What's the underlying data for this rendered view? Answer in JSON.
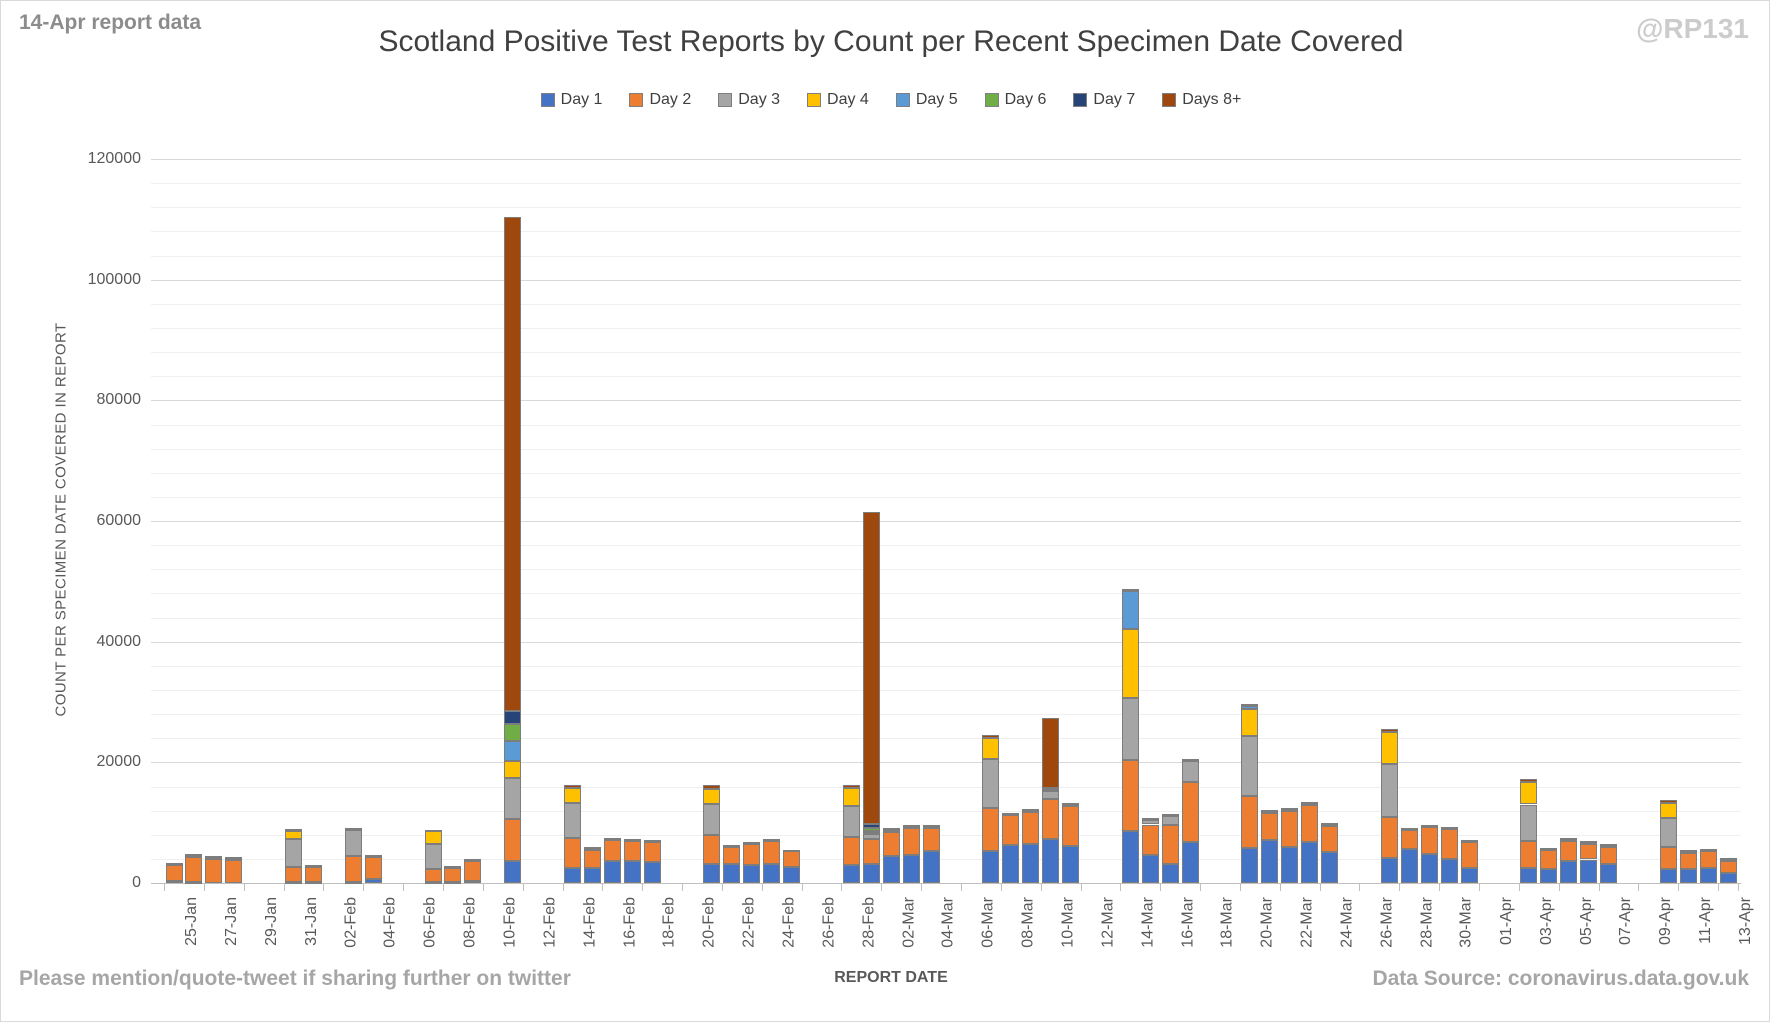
{
  "header": {
    "note": "14-Apr report data",
    "watermark": "@RP131"
  },
  "footer": {
    "left": "Please mention/quote-tweet if sharing further on twitter",
    "right": "Data Source: coronavirus.data.gov.uk"
  },
  "chart_data": {
    "type": "bar",
    "stacked": true,
    "title": "Scotland Positive Test Reports by Count per Recent Specimen Date Covered",
    "xlabel": "REPORT DATE",
    "ylabel": "COUNT PER SPECIMEN DATE COVERED IN REPORT",
    "ylim": [
      0,
      120000
    ],
    "y_major_step": 20000,
    "y_minor_step": 4000,
    "grid": true,
    "legend_position": "top",
    "x_span_days": 79,
    "x_tick_labels": [
      "25-Jan",
      "27-Jan",
      "29-Jan",
      "31-Jan",
      "02-Feb",
      "04-Feb",
      "06-Feb",
      "08-Feb",
      "10-Feb",
      "12-Feb",
      "14-Feb",
      "16-Feb",
      "18-Feb",
      "20-Feb",
      "22-Feb",
      "24-Feb",
      "26-Feb",
      "28-Feb",
      "02-Mar",
      "04-Mar",
      "06-Mar",
      "08-Mar",
      "10-Mar",
      "12-Mar",
      "14-Mar",
      "16-Mar",
      "18-Mar",
      "20-Mar",
      "22-Mar",
      "24-Mar",
      "26-Mar",
      "28-Mar",
      "30-Mar",
      "01-Apr",
      "03-Apr",
      "05-Apr",
      "07-Apr",
      "09-Apr",
      "11-Apr",
      "13-Apr"
    ],
    "series": [
      {
        "name": "Day 1",
        "color": "#4472C4"
      },
      {
        "name": "Day 2",
        "color": "#ED7D31"
      },
      {
        "name": "Day 3",
        "color": "#A5A5A5"
      },
      {
        "name": "Day 4",
        "color": "#FFC000"
      },
      {
        "name": "Day 5",
        "color": "#5B9BD5"
      },
      {
        "name": "Day 6",
        "color": "#70AD47"
      },
      {
        "name": "Day 7",
        "color": "#264478"
      },
      {
        "name": "Days 8+",
        "color": "#9E480E"
      }
    ],
    "bars": [
      {
        "date": "25-Jan",
        "day": 0,
        "values": [
          400,
          2600,
          100,
          0,
          0,
          0,
          0,
          300
        ]
      },
      {
        "date": "26-Jan",
        "day": 1,
        "values": [
          200,
          4100,
          200,
          0,
          0,
          0,
          0,
          300
        ]
      },
      {
        "date": "27-Jan",
        "day": 2,
        "values": [
          0,
          4100,
          100,
          0,
          0,
          0,
          0,
          300
        ]
      },
      {
        "date": "28-Jan",
        "day": 3,
        "values": [
          0,
          3900,
          100,
          0,
          0,
          0,
          0,
          300
        ]
      },
      {
        "date": "31-Jan",
        "day": 6,
        "values": [
          200,
          2400,
          4700,
          1400,
          0,
          0,
          0,
          200
        ]
      },
      {
        "date": "01-Feb",
        "day": 7,
        "values": [
          100,
          2600,
          100,
          0,
          0,
          0,
          0,
          200
        ]
      },
      {
        "date": "03-Feb",
        "day": 9,
        "values": [
          200,
          4300,
          4300,
          100,
          0,
          0,
          0,
          200
        ]
      },
      {
        "date": "04-Feb",
        "day": 10,
        "values": [
          700,
          3700,
          100,
          0,
          0,
          0,
          0,
          200
        ]
      },
      {
        "date": "07-Feb",
        "day": 13,
        "values": [
          100,
          2200,
          4100,
          2200,
          0,
          0,
          0,
          200
        ]
      },
      {
        "date": "08-Feb",
        "day": 14,
        "values": [
          100,
          2400,
          100,
          0,
          0,
          0,
          0,
          200
        ]
      },
      {
        "date": "09-Feb",
        "day": 15,
        "values": [
          300,
          3400,
          100,
          0,
          0,
          0,
          0,
          200
        ]
      },
      {
        "date": "11-Feb",
        "day": 17,
        "values": [
          3600,
          7000,
          6800,
          2800,
          3300,
          2800,
          2200,
          81900
        ]
      },
      {
        "date": "14-Feb",
        "day": 20,
        "values": [
          2500,
          5000,
          5800,
          2500,
          0,
          0,
          0,
          500
        ]
      },
      {
        "date": "15-Feb",
        "day": 21,
        "values": [
          2500,
          3100,
          100,
          0,
          0,
          0,
          0,
          200
        ]
      },
      {
        "date": "16-Feb",
        "day": 22,
        "values": [
          3600,
          3600,
          100,
          0,
          0,
          0,
          0,
          200
        ]
      },
      {
        "date": "17-Feb",
        "day": 23,
        "values": [
          3600,
          3400,
          100,
          0,
          0,
          0,
          0,
          200
        ]
      },
      {
        "date": "18-Feb",
        "day": 24,
        "values": [
          3500,
          3400,
          100,
          0,
          0,
          0,
          0,
          200
        ]
      },
      {
        "date": "21-Feb",
        "day": 27,
        "values": [
          3100,
          4900,
          5100,
          2500,
          0,
          0,
          0,
          600
        ]
      },
      {
        "date": "22-Feb",
        "day": 28,
        "values": [
          3200,
          2900,
          100,
          0,
          0,
          0,
          0,
          100
        ]
      },
      {
        "date": "23-Feb",
        "day": 29,
        "values": [
          3000,
          3600,
          100,
          0,
          0,
          0,
          0,
          100
        ]
      },
      {
        "date": "24-Feb",
        "day": 30,
        "values": [
          3200,
          3900,
          100,
          0,
          0,
          0,
          0,
          100
        ]
      },
      {
        "date": "25-Feb",
        "day": 31,
        "values": [
          2700,
          2600,
          100,
          0,
          0,
          0,
          0,
          100
        ]
      },
      {
        "date": "28-Feb",
        "day": 34,
        "values": [
          3000,
          4600,
          5100,
          3000,
          0,
          0,
          0,
          600
        ]
      },
      {
        "date": "01-Mar",
        "day": 35,
        "values": [
          3200,
          4100,
          800,
          300,
          200,
          500,
          700,
          51700
        ]
      },
      {
        "date": "02-Mar",
        "day": 36,
        "values": [
          4500,
          4000,
          300,
          0,
          0,
          0,
          0,
          300
        ]
      },
      {
        "date": "03-Mar",
        "day": 37,
        "values": [
          4700,
          4400,
          300,
          0,
          0,
          0,
          0,
          200
        ]
      },
      {
        "date": "04-Mar",
        "day": 38,
        "values": [
          5300,
          3800,
          200,
          0,
          0,
          0,
          0,
          300
        ]
      },
      {
        "date": "07-Mar",
        "day": 41,
        "values": [
          5300,
          7100,
          8100,
          3500,
          0,
          0,
          0,
          600
        ]
      },
      {
        "date": "08-Mar",
        "day": 42,
        "values": [
          6300,
          5000,
          100,
          0,
          0,
          0,
          0,
          200
        ]
      },
      {
        "date": "09-Mar",
        "day": 43,
        "values": [
          6500,
          5400,
          100,
          0,
          0,
          0,
          0,
          300
        ]
      },
      {
        "date": "10-Mar",
        "day": 44,
        "values": [
          7300,
          6600,
          1300,
          400,
          0,
          0,
          200,
          11500
        ]
      },
      {
        "date": "11-Mar",
        "day": 45,
        "values": [
          6100,
          6600,
          200,
          0,
          0,
          0,
          0,
          400
        ]
      },
      {
        "date": "14-Mar",
        "day": 48,
        "values": [
          8600,
          11800,
          10300,
          11400,
          6300,
          0,
          0,
          300
        ]
      },
      {
        "date": "15-Mar",
        "day": 49,
        "values": [
          4600,
          5100,
          700,
          0,
          0,
          0,
          0,
          300
        ]
      },
      {
        "date": "16-Mar",
        "day": 50,
        "values": [
          3100,
          6500,
          1500,
          0,
          0,
          0,
          0,
          300
        ]
      },
      {
        "date": "17-Mar",
        "day": 51,
        "values": [
          6800,
          9900,
          3500,
          0,
          0,
          0,
          0,
          300
        ]
      },
      {
        "date": "20-Mar",
        "day": 54,
        "values": [
          5800,
          8600,
          9900,
          4500,
          500,
          0,
          0,
          300
        ]
      },
      {
        "date": "21-Mar",
        "day": 55,
        "values": [
          7100,
          4500,
          200,
          0,
          0,
          0,
          0,
          300
        ]
      },
      {
        "date": "22-Mar",
        "day": 56,
        "values": [
          6000,
          6000,
          200,
          0,
          0,
          0,
          0,
          200
        ]
      },
      {
        "date": "23-Mar",
        "day": 57,
        "values": [
          6800,
          6200,
          200,
          0,
          0,
          0,
          0,
          200
        ]
      },
      {
        "date": "24-Mar",
        "day": 58,
        "values": [
          5100,
          4500,
          100,
          0,
          0,
          0,
          0,
          300
        ]
      },
      {
        "date": "27-Mar",
        "day": 61,
        "values": [
          4100,
          6800,
          8900,
          5200,
          0,
          0,
          0,
          500
        ]
      },
      {
        "date": "28-Mar",
        "day": 62,
        "values": [
          5600,
          3200,
          100,
          0,
          0,
          0,
          0,
          200
        ]
      },
      {
        "date": "29-Mar",
        "day": 63,
        "values": [
          4800,
          4500,
          100,
          0,
          0,
          0,
          0,
          200
        ]
      },
      {
        "date": "30-Mar",
        "day": 64,
        "values": [
          4000,
          5000,
          100,
          0,
          0,
          0,
          0,
          200
        ]
      },
      {
        "date": "31-Mar",
        "day": 65,
        "values": [
          2500,
          4300,
          100,
          0,
          0,
          0,
          0,
          200
        ]
      },
      {
        "date": "03-Apr",
        "day": 68,
        "values": [
          2500,
          4500,
          6000,
          3800,
          0,
          0,
          0,
          400
        ]
      },
      {
        "date": "04-Apr",
        "day": 69,
        "values": [
          2300,
          3200,
          100,
          0,
          0,
          0,
          0,
          200
        ]
      },
      {
        "date": "05-Apr",
        "day": 70,
        "values": [
          3600,
          3500,
          100,
          0,
          0,
          0,
          0,
          300
        ]
      },
      {
        "date": "06-Apr",
        "day": 71,
        "values": [
          3900,
          2700,
          100,
          0,
          0,
          0,
          0,
          300
        ]
      },
      {
        "date": "07-Apr",
        "day": 72,
        "values": [
          3100,
          2900,
          100,
          0,
          0,
          0,
          0,
          300
        ]
      },
      {
        "date": "10-Apr",
        "day": 75,
        "values": [
          2300,
          3700,
          4800,
          2500,
          0,
          0,
          0,
          400
        ]
      },
      {
        "date": "11-Apr",
        "day": 76,
        "values": [
          2300,
          2800,
          100,
          0,
          0,
          0,
          0,
          300
        ]
      },
      {
        "date": "12-Apr",
        "day": 77,
        "values": [
          2500,
          2800,
          100,
          0,
          0,
          0,
          0,
          300
        ]
      },
      {
        "date": "13-Apr",
        "day": 78,
        "values": [
          1700,
          2100,
          100,
          0,
          0,
          0,
          0,
          300
        ]
      }
    ]
  }
}
